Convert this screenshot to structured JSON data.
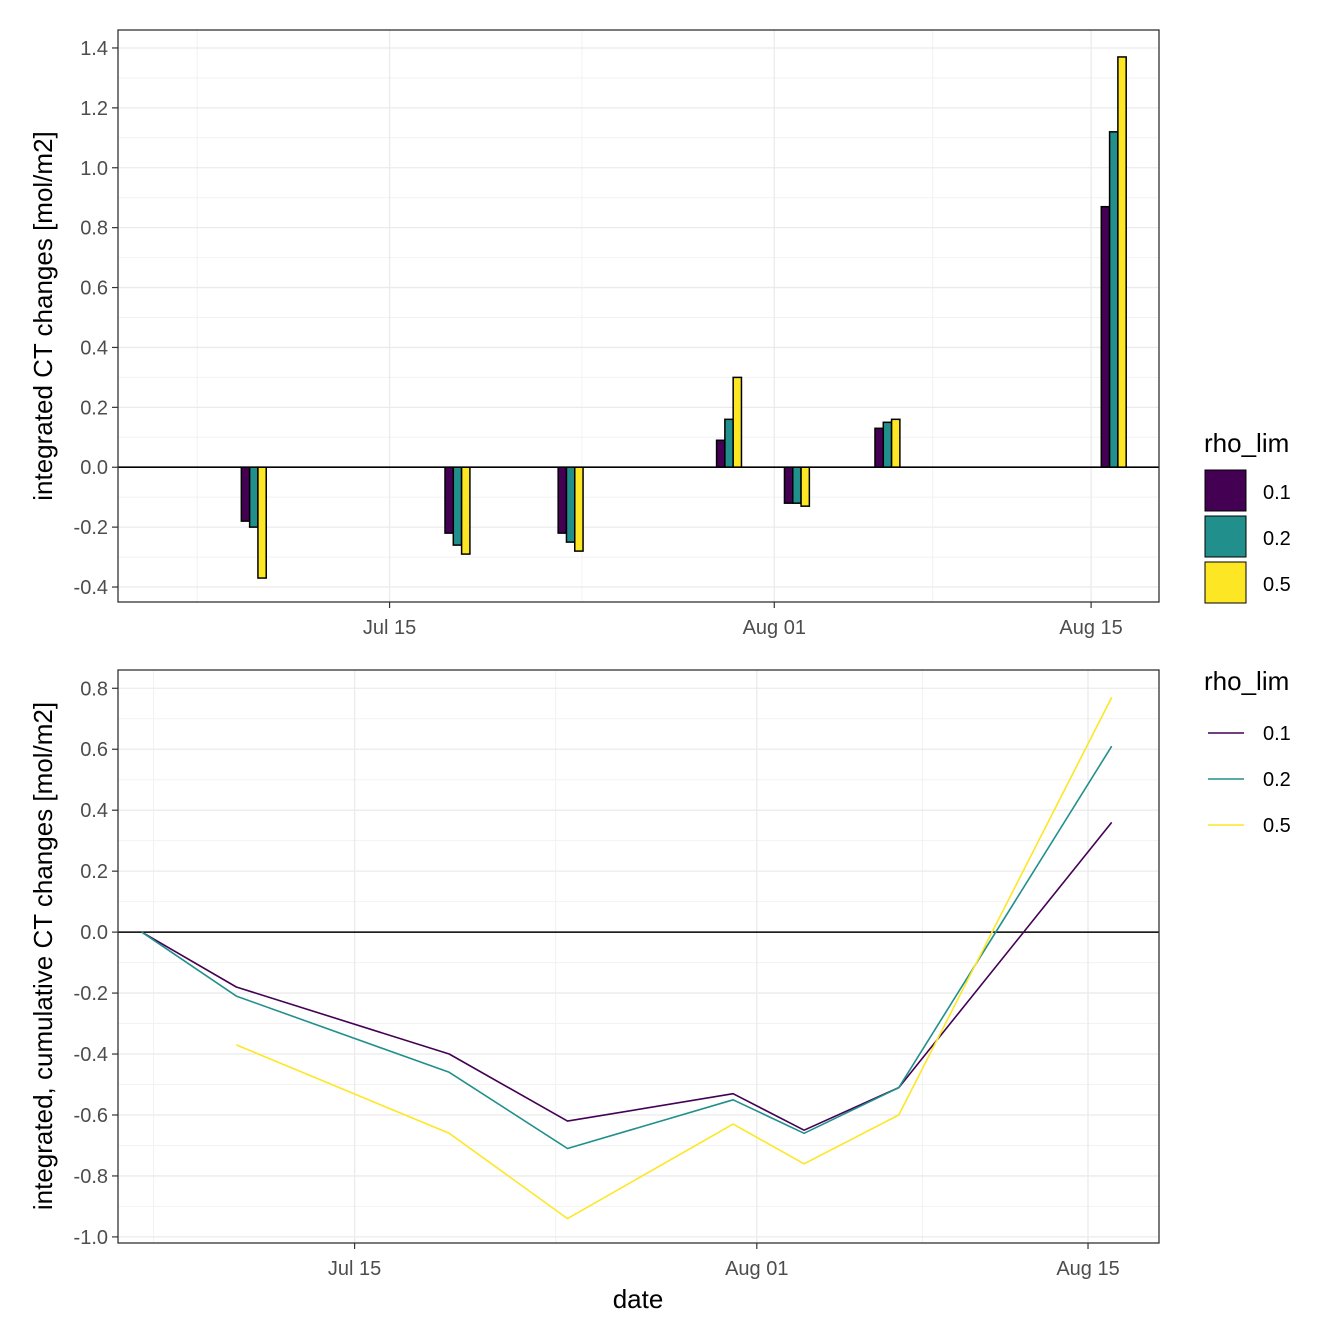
{
  "chart_data": [
    {
      "type": "bar",
      "ylabel": "integrated CT changes [mol/m2]",
      "xlabel": "",
      "x_ticks": [
        "Jul 15",
        "Aug 01",
        "Aug 15"
      ],
      "y_ticks": [
        "-0.4",
        "-0.2",
        "0.0",
        "0.2",
        "0.4",
        "0.6",
        "0.8",
        "1.0",
        "1.2",
        "1.4"
      ],
      "xlim": [
        "2021-07-03",
        "2021-08-18"
      ],
      "ylim": [
        -0.45,
        1.46
      ],
      "dates": [
        "2021-07-09",
        "2021-07-18",
        "2021-07-23",
        "2021-07-30",
        "2021-08-02",
        "2021-08-06",
        "2021-08-16"
      ],
      "legend": {
        "title": "rho_lim",
        "labels": [
          "0.1",
          "0.2",
          "0.5"
        ],
        "position": "right"
      },
      "series": [
        {
          "name": "0.1",
          "color": "#440154",
          "values": [
            -0.18,
            -0.22,
            -0.22,
            0.09,
            -0.12,
            0.13,
            0.87
          ]
        },
        {
          "name": "0.2",
          "color": "#21908C",
          "values": [
            -0.2,
            -0.26,
            -0.25,
            0.16,
            -0.12,
            0.15,
            1.12
          ]
        },
        {
          "name": "0.5",
          "color": "#FDE725",
          "values": [
            -0.37,
            -0.29,
            -0.28,
            0.3,
            -0.13,
            0.16,
            1.37
          ]
        }
      ],
      "hline": 0,
      "grid": true
    },
    {
      "type": "line",
      "ylabel": "integrated, cumulative CT changes [mol/m2]",
      "xlabel": "date",
      "x_ticks": [
        "Jul 15",
        "Aug 01",
        "Aug 15"
      ],
      "y_ticks": [
        "-1.0",
        "-0.8",
        "-0.6",
        "-0.4",
        "-0.2",
        "0.0",
        "0.2",
        "0.4",
        "0.6",
        "0.8"
      ],
      "xlim": [
        "2021-07-05",
        "2021-08-18"
      ],
      "ylim": [
        -1.02,
        0.86
      ],
      "legend": {
        "title": "rho_lim",
        "labels": [
          "0.1",
          "0.2",
          "0.5"
        ],
        "position": "right"
      },
      "series": [
        {
          "name": "0.1",
          "color": "#440154",
          "points": [
            [
              "2021-07-06",
              0.0
            ],
            [
              "2021-07-10",
              -0.18
            ],
            [
              "2021-07-19",
              -0.4
            ],
            [
              "2021-07-24",
              -0.62
            ],
            [
              "2021-07-31",
              -0.53
            ],
            [
              "2021-08-03",
              -0.65
            ],
            [
              "2021-08-07",
              -0.51
            ],
            [
              "2021-08-16",
              0.36
            ]
          ]
        },
        {
          "name": "0.2",
          "color": "#21908C",
          "points": [
            [
              "2021-07-06",
              0.0
            ],
            [
              "2021-07-10",
              -0.21
            ],
            [
              "2021-07-19",
              -0.46
            ],
            [
              "2021-07-24",
              -0.71
            ],
            [
              "2021-07-31",
              -0.55
            ],
            [
              "2021-08-03",
              -0.66
            ],
            [
              "2021-08-07",
              -0.51
            ],
            [
              "2021-08-16",
              0.61
            ]
          ]
        },
        {
          "name": "0.5",
          "color": "#FDE725",
          "points": [
            [
              "2021-07-10",
              -0.37
            ],
            [
              "2021-07-19",
              -0.66
            ],
            [
              "2021-07-24",
              -0.94
            ],
            [
              "2021-07-31",
              -0.63
            ],
            [
              "2021-08-03",
              -0.76
            ],
            [
              "2021-08-07",
              -0.6
            ],
            [
              "2021-08-16",
              0.77
            ]
          ]
        }
      ],
      "hline": 0,
      "grid": true
    }
  ]
}
